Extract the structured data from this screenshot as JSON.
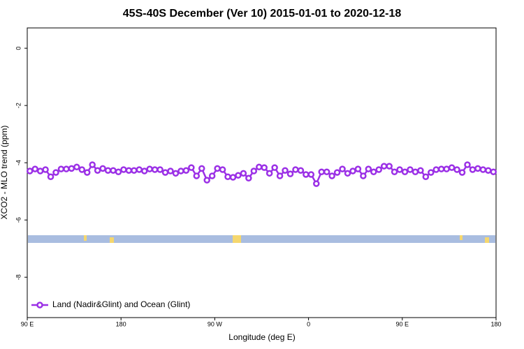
{
  "chart_data": {
    "type": "line",
    "title": "45S-40S December (Ver 10)   2015-01-01 to 2020-12-18",
    "x_label": "Longitude (deg E)",
    "y_label": "XCO2 - MLO trend (ppm)",
    "xlim": [
      90,
      540
    ],
    "ylim": [
      -9.41,
      0.71
    ],
    "xticks": [
      {
        "value": 90,
        "label": "90 E"
      },
      {
        "value": 180,
        "label": "180"
      },
      {
        "value": 270,
        "label": "90 W"
      },
      {
        "value": 360,
        "label": "0"
      },
      {
        "value": 450,
        "label": "90 E"
      },
      {
        "value": 540,
        "label": "180"
      }
    ],
    "yticks": [
      0,
      -2,
      -4,
      -6,
      -8
    ],
    "legend": "bottom-left",
    "x": [
      92.5,
      97.5,
      102.5,
      107.5,
      112.5,
      117.5,
      122.5,
      127.5,
      132.5,
      137.5,
      142.5,
      147.5,
      152.5,
      157.5,
      162.5,
      167.5,
      172.5,
      177.5,
      182.5,
      187.5,
      192.5,
      197.5,
      202.5,
      207.5,
      212.5,
      217.5,
      222.5,
      227.5,
      232.5,
      237.5,
      242.5,
      247.5,
      252.5,
      257.5,
      262.5,
      267.5,
      272.5,
      277.5,
      282.5,
      287.5,
      292.5,
      297.5,
      302.5,
      307.5,
      312.5,
      317.5,
      322.5,
      327.5,
      332.5,
      337.5,
      342.5,
      347.5,
      352.5,
      357.5,
      362.5,
      367.5,
      372.5,
      377.5,
      382.5,
      387.5,
      392.5,
      397.5,
      402.5,
      407.5,
      412.5,
      417.5,
      422.5,
      427.5,
      432.5,
      437.5,
      442.5,
      447.5,
      452.5,
      457.5,
      462.5,
      467.5,
      472.5,
      477.5,
      482.5,
      487.5,
      492.5,
      497.5,
      502.5,
      507.5,
      512.5,
      517.5,
      522.5,
      527.5,
      532.5,
      537.5
    ],
    "series": [
      {
        "name": "Land (Nadir&Glint) and Ocean (Glint)",
        "color": "#9b30e6",
        "values": [
          -4.29,
          -4.22,
          -4.29,
          -4.24,
          -4.49,
          -4.34,
          -4.22,
          -4.22,
          -4.2,
          -4.15,
          -4.24,
          -4.34,
          -4.07,
          -4.27,
          -4.2,
          -4.27,
          -4.27,
          -4.32,
          -4.24,
          -4.27,
          -4.27,
          -4.24,
          -4.29,
          -4.22,
          -4.24,
          -4.24,
          -4.34,
          -4.29,
          -4.37,
          -4.29,
          -4.27,
          -4.17,
          -4.46,
          -4.2,
          -4.61,
          -4.46,
          -4.2,
          -4.24,
          -4.49,
          -4.51,
          -4.44,
          -4.37,
          -4.54,
          -4.29,
          -4.15,
          -4.17,
          -4.37,
          -4.17,
          -4.46,
          -4.27,
          -4.39,
          -4.24,
          -4.27,
          -4.41,
          -4.41,
          -4.73,
          -4.32,
          -4.32,
          -4.46,
          -4.34,
          -4.22,
          -4.37,
          -4.29,
          -4.22,
          -4.46,
          -4.22,
          -4.32,
          -4.24,
          -4.12,
          -4.12,
          -4.32,
          -4.24,
          -4.32,
          -4.24,
          -4.32,
          -4.27,
          -4.49,
          -4.34,
          -4.24,
          -4.22,
          -4.22,
          -4.17,
          -4.24,
          -4.34,
          -4.07,
          -4.24,
          -4.2,
          -4.24,
          -4.27,
          -4.32
        ]
      }
    ]
  }
}
